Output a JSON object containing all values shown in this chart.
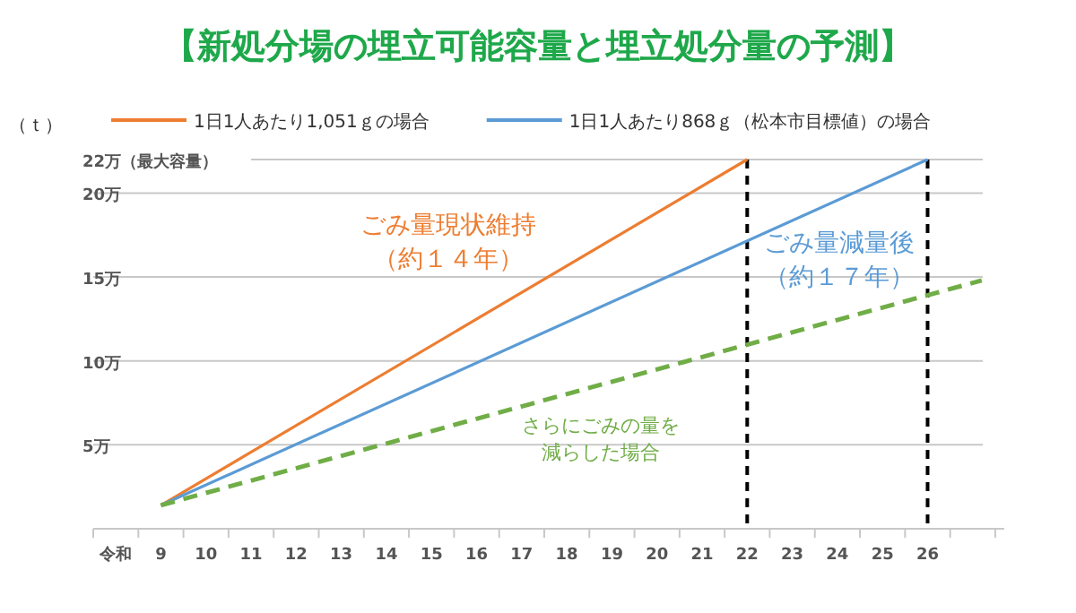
{
  "chart_data": {
    "type": "line",
    "title": "【新処分場の埋立可能容量と埋立処分量の予測】",
    "ylabel": "（ｔ）",
    "xlim": [
      7.5,
      27.7
    ],
    "xticks": [
      {
        "value": 8,
        "label": "令和"
      },
      9,
      10,
      11,
      12,
      13,
      14,
      15,
      16,
      17,
      18,
      19,
      20,
      21,
      22,
      23,
      24,
      25,
      26,
      {
        "value": 7.5,
        "label": null
      },
      {
        "value": 8.5,
        "label": null
      },
      {
        "value": 9.5,
        "label": null
      },
      {
        "value": 10.5,
        "label": null
      },
      {
        "value": 11.5,
        "label": null
      },
      {
        "value": 12.5,
        "label": null
      },
      {
        "value": 13.5,
        "label": null
      },
      {
        "value": 14.5,
        "label": null
      },
      {
        "value": 15.5,
        "label": null
      },
      {
        "value": 16.5,
        "label": null
      },
      {
        "value": 17.5,
        "label": null
      },
      {
        "value": 18.5,
        "label": null
      },
      {
        "value": 19.5,
        "label": null
      },
      {
        "value": 20.5,
        "label": null
      },
      {
        "value": 21.5,
        "label": null
      },
      {
        "value": 22.5,
        "label": null
      },
      {
        "value": 23.5,
        "label": null
      },
      {
        "value": 24.5,
        "label": null
      },
      {
        "value": 25.5,
        "label": null
      },
      {
        "value": 26.5,
        "label": null
      },
      {
        "value": 27.5,
        "label": null
      }
    ],
    "ylim": [
      0,
      22
    ],
    "yticks": [
      {
        "value": 5,
        "label": "5万"
      },
      {
        "value": 10,
        "label": "10万"
      },
      {
        "value": 15,
        "label": "15万"
      },
      {
        "value": 20,
        "label": "20万"
      },
      {
        "value": 22,
        "label": "22万（最大容量）"
      }
    ],
    "grid": "y",
    "legend": "top",
    "series": [
      {
        "name": "1日1人あたり1,051ｇの場合",
        "color": "#ed7d31",
        "x": [
          9,
          22
        ],
        "values": [
          1.4,
          22
        ]
      },
      {
        "name": "1日1人あたり868ｇ（松本市目標値）の場合",
        "color": "#5b9bd5",
        "x": [
          9,
          26
        ],
        "values": [
          1.4,
          22
        ]
      },
      {
        "color": "#70ad47",
        "line_style": "dashed",
        "x": [
          9,
          27.2
        ],
        "values": [
          1.4,
          14.8
        ]
      }
    ],
    "ref_lines": [
      {
        "axis": "x",
        "value": 22,
        "color": "#000000",
        "line_style": "dashed"
      },
      {
        "axis": "x",
        "value": 26,
        "color": "#000000",
        "line_style": "dashed"
      }
    ],
    "annotations": [
      "ごみ量現状維持",
      "（約１４年）",
      "ごみ量減量後",
      "（約１７年）",
      "さらにごみの量を",
      "減らした場合"
    ]
  }
}
